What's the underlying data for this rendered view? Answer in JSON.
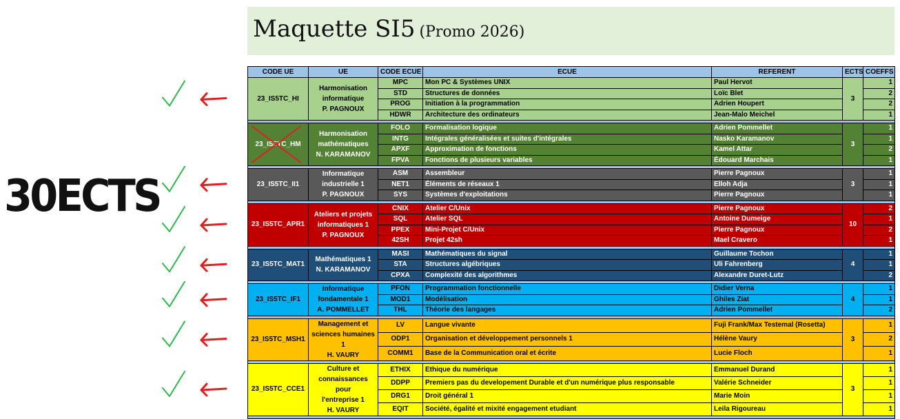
{
  "title": {
    "main": "Maquette SI5",
    "sub": "(Promo 2026)"
  },
  "annotation_text": "30ECTS",
  "colors": {
    "header": "#9dc3e6",
    "title_bg": "#e2efd9",
    "checkmark": "#2db84d",
    "arrow": "#e02020",
    "cross": "#e02020"
  },
  "headers": [
    "CODE UE",
    "UE",
    "CODE ECUE",
    "ECUE",
    "REFERENT",
    "ECTS",
    "COEFFS"
  ],
  "groups": [
    {
      "code": "23_IS5TC_HI",
      "ue_lines": [
        "Harmonisation",
        "informatique",
        "P. PAGNOUX"
      ],
      "ects": "3",
      "crossed": false,
      "rows": [
        {
          "code": "MPC",
          "ecue": "Mon PC & Systèmes UNIX",
          "ref": "Paul Hervot",
          "coef": "1"
        },
        {
          "code": "STD",
          "ecue": "Structures de données",
          "ref": "Loïc Blet",
          "coef": "2"
        },
        {
          "code": "PROG",
          "ecue": "Initiation à la programmation",
          "ref": "Adrien Houpert",
          "coef": "2"
        },
        {
          "code": "HDWR",
          "ecue": "Architecture des ordinateurs",
          "ref": "Jean-Malo Meichel",
          "coef": "1"
        }
      ]
    },
    {
      "code": "23_IS5TC_HM",
      "ue_lines": [
        "Harmonisation",
        "mathématiques",
        "N. KARAMANOV"
      ],
      "ects": "3",
      "crossed": true,
      "rows": [
        {
          "code": "FOLO",
          "ecue": "Formalisation logique",
          "ref": "Adrien Pommellet",
          "coef": "1"
        },
        {
          "code": "INTG",
          "ecue": "Intégrales généralisées et suites d'intégrales",
          "ref": "Nasko Karamanov",
          "coef": "1"
        },
        {
          "code": "APXF",
          "ecue": "Approximation de fonctions",
          "ref": "Kamel Attar",
          "coef": "2"
        },
        {
          "code": "FPVA",
          "ecue": "Fonctions de plusieurs variables",
          "ref": "Édouard Marchais",
          "coef": "1"
        }
      ]
    },
    {
      "code": "23_IS5TC_II1",
      "ue_lines": [
        "Informatique",
        "industrielle 1",
        "P. PAGNOUX"
      ],
      "ects": "3",
      "crossed": false,
      "rows": [
        {
          "code": "ASM",
          "ecue": "Assembleur",
          "ref": "Pierre Pagnoux",
          "coef": "1"
        },
        {
          "code": "NET1",
          "ecue": "Éléments de réseaux 1",
          "ref": "Elloh Adja",
          "coef": "1"
        },
        {
          "code": "SYS",
          "ecue": "Systèmes d'exploitations",
          "ref": "Pierre Pagnoux",
          "coef": "1"
        }
      ]
    },
    {
      "code": "23_IS5TC_APR1",
      "ue_lines": [
        "Ateliers et projets",
        "informatiques 1",
        "P. PAGNOUX"
      ],
      "ects": "10",
      "crossed": false,
      "rows": [
        {
          "code": "CNIX",
          "ecue": "Atelier C/Unix",
          "ref": "Pierre Pagnoux",
          "coef": "2"
        },
        {
          "code": "SQL",
          "ecue": "Atelier SQL",
          "ref": "Antoine Dumeige",
          "coef": "1"
        },
        {
          "code": "PPEX",
          "ecue": "Mini-Projet C/Unix",
          "ref": "Pierre Pagnoux",
          "coef": "2"
        },
        {
          "code": "42SH",
          "ecue": "Projet 42sh",
          "ref": "Mael Cravero",
          "coef": "1"
        }
      ]
    },
    {
      "code": "23_IS5TC_MAT1",
      "ue_lines": [
        "Mathématiques 1",
        "N. KARAMANOV"
      ],
      "ects": "4",
      "crossed": false,
      "rows": [
        {
          "code": "MASI",
          "ecue": "Mathématiques du signal",
          "ref": "Guillaume Tochon",
          "coef": "1"
        },
        {
          "code": "STA",
          "ecue": "Structures algébriques",
          "ref": "Uli Fahrenberg",
          "coef": "1"
        },
        {
          "code": "CPXA",
          "ecue": "Complexité des algorithmes",
          "ref": "Alexandre Duret-Lutz",
          "coef": "2"
        }
      ]
    },
    {
      "code": "23_IS5TC_IF1",
      "ue_lines": [
        "Informatique",
        "fondamentale 1",
        "A. POMMELLET"
      ],
      "ects": "4",
      "crossed": false,
      "rows": [
        {
          "code": "PFON",
          "ecue": "Programmation fonctionnelle",
          "ref": "Didier Verna",
          "coef": "1"
        },
        {
          "code": "MOD1",
          "ecue": "Modélisation",
          "ref": "Ghiles Ziat",
          "coef": "1"
        },
        {
          "code": "THL",
          "ecue": "Théorie des langages",
          "ref": "Adrien Pommellet",
          "coef": "2"
        }
      ]
    },
    {
      "code": "23_IS5TC_MSH1",
      "ue_lines": [
        "Management et",
        "sciences humaines 1",
        "H. VAURY"
      ],
      "ects": "3",
      "crossed": false,
      "rows": [
        {
          "code": "LV",
          "ecue": "Langue vivante",
          "ref": "Fuji Frank/Max Testemal (Rosetta)",
          "coef": "1"
        },
        {
          "code": "ODP1",
          "ecue": "Organisation et développement personnels 1",
          "ref": "Hélène Vaury",
          "coef": "2"
        },
        {
          "code": "COMM1",
          "ecue": "Base de  la Communication oral et écrite",
          "ref": "Lucie Floch",
          "coef": "1"
        }
      ]
    },
    {
      "code": "23_IS5TC_CCE1",
      "ue_lines": [
        "Culture et",
        "connaissances pour",
        "l'entreprise 1",
        "H. VAURY"
      ],
      "ects": "3",
      "crossed": false,
      "rows": [
        {
          "code": "ETHIX",
          "ecue": "Ethique du numérique",
          "ref": "Emmanuel Durand",
          "coef": "1"
        },
        {
          "code": "DDPP",
          "ecue": "Premiers pas du developement Durable et d'un numérique plus responsable",
          "ref": "Valérie Schneider",
          "coef": "1"
        },
        {
          "code": "DRG1",
          "ecue": "Droit général 1",
          "ref": "Marie Moin",
          "coef": "1"
        },
        {
          "code": "EQIT",
          "ecue": "Société, égalité et mixité engagement etudiant",
          "ref": "Leila Rigoureau",
          "coef": "1"
        }
      ]
    }
  ]
}
